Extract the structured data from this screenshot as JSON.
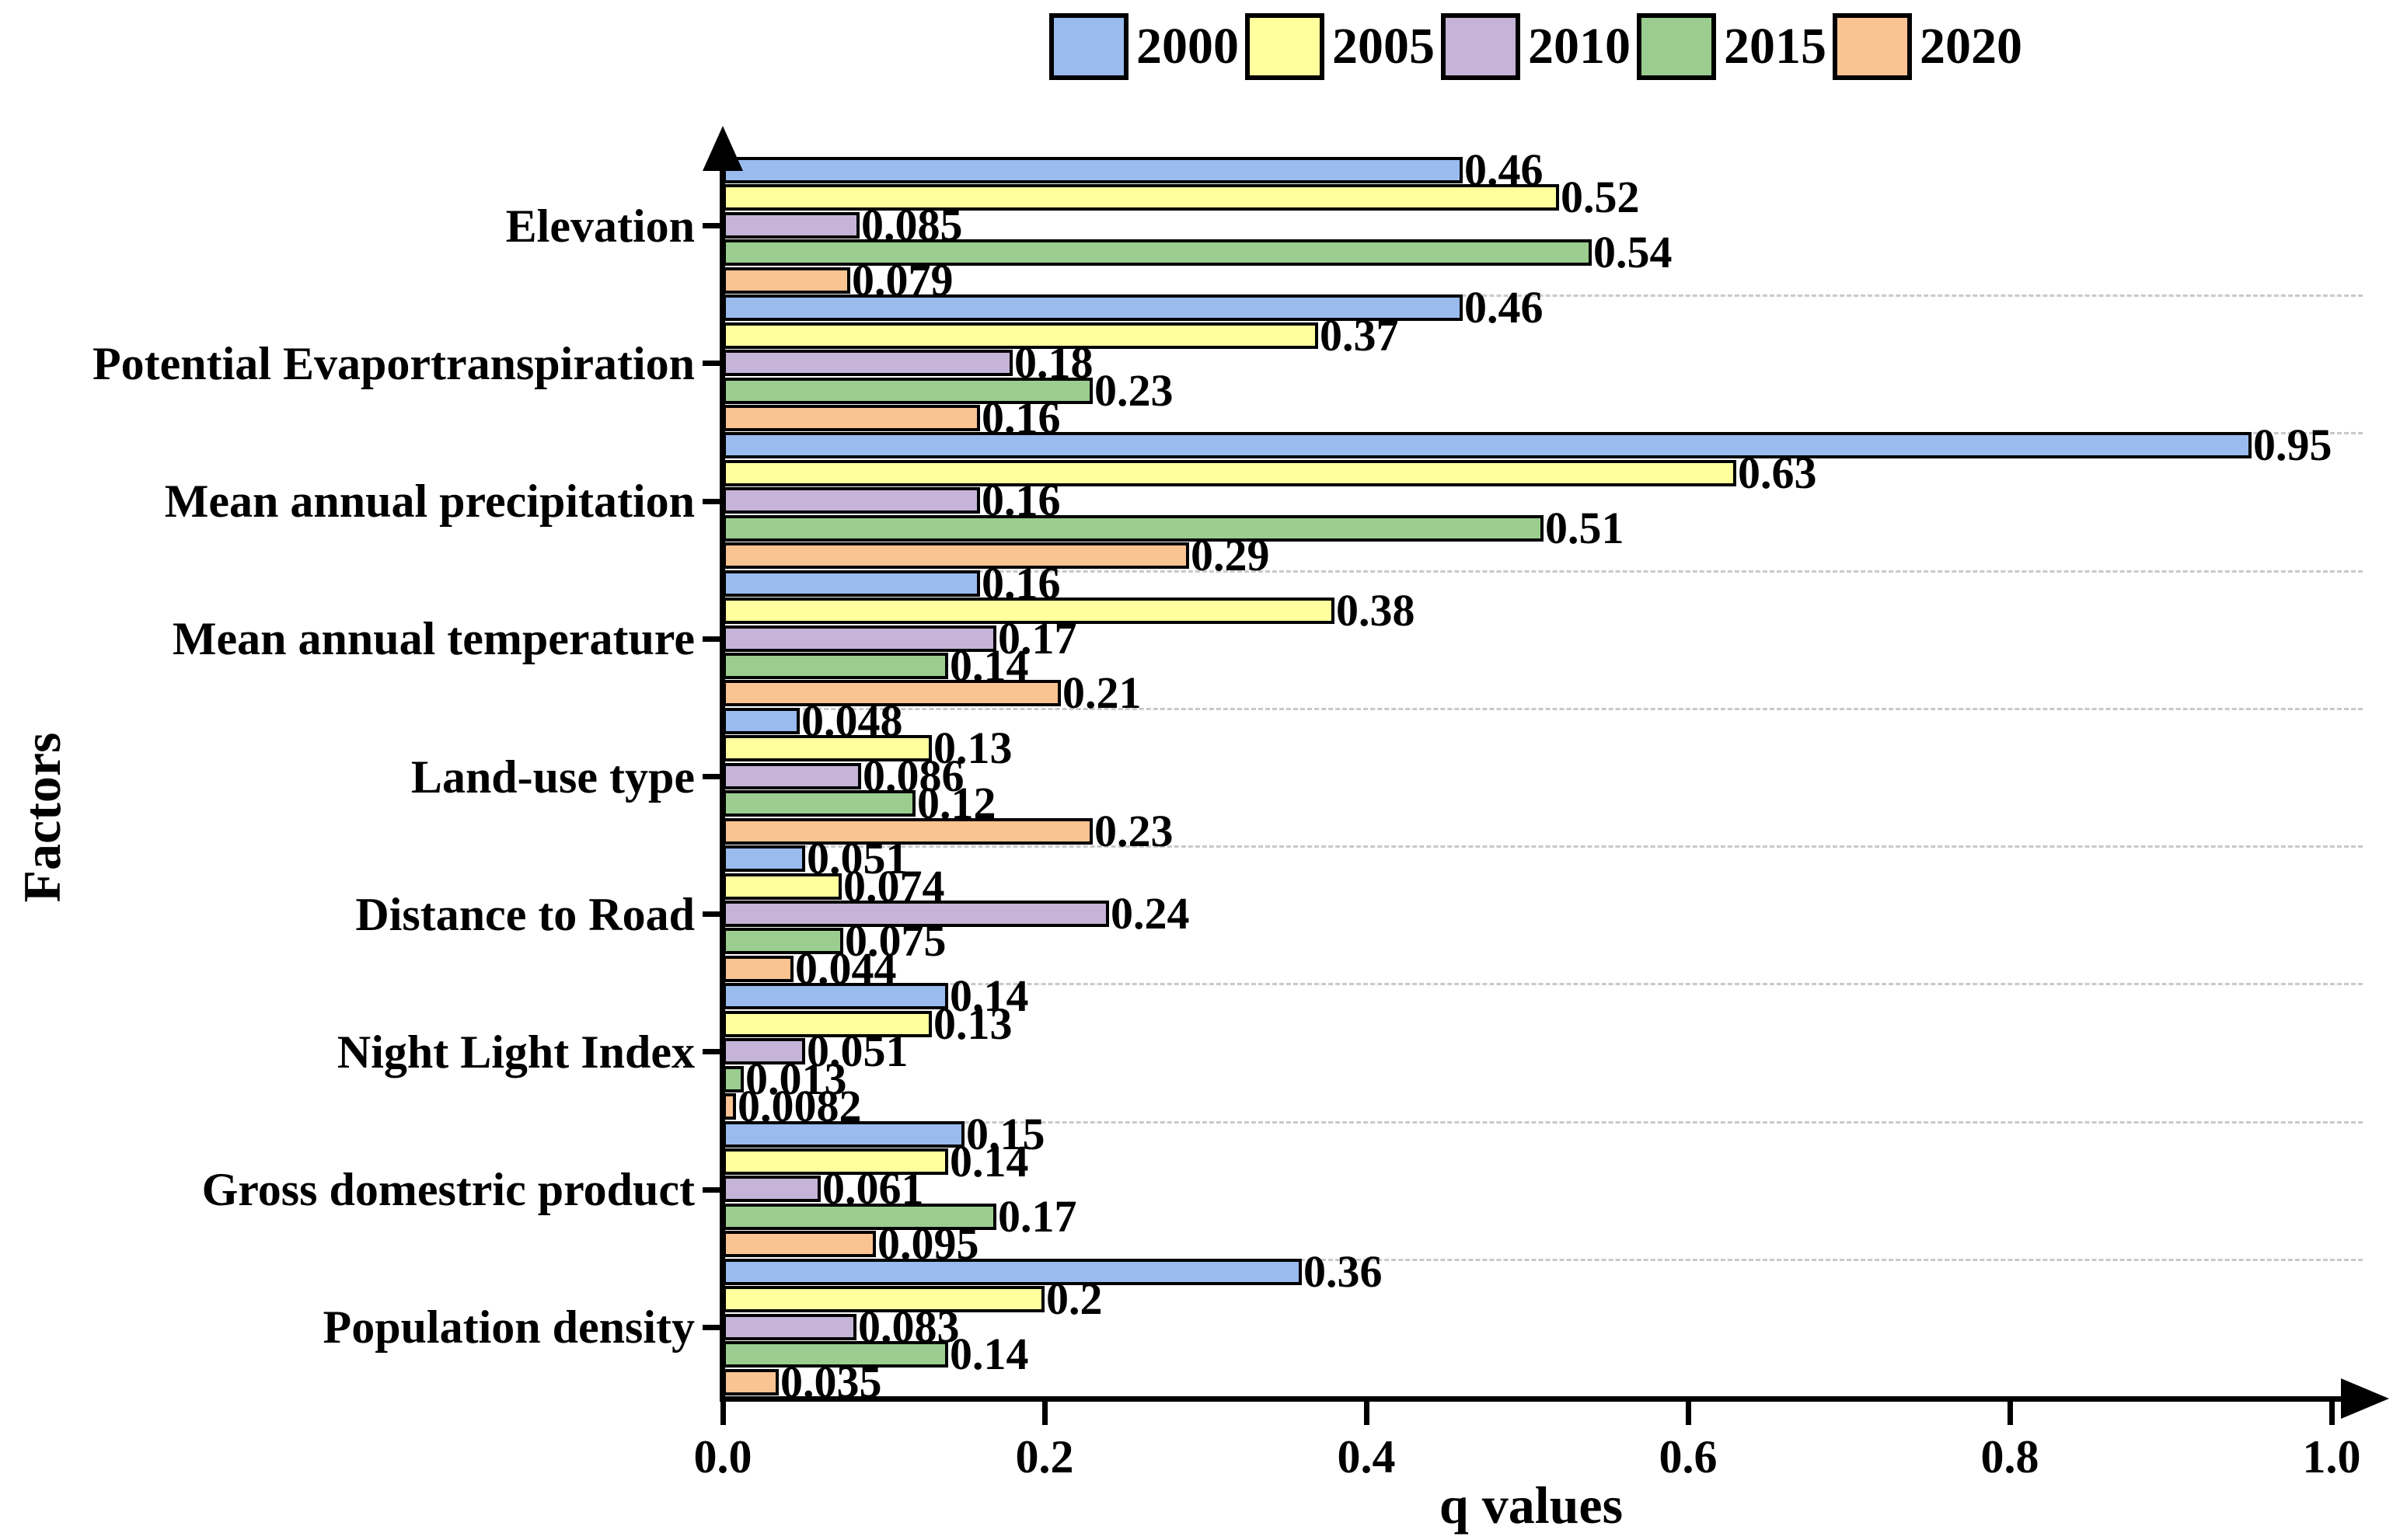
{
  "chart_data": {
    "type": "bar",
    "orientation": "horizontal",
    "title": "",
    "xlabel": "q values",
    "ylabel": "Factors",
    "xlim": [
      0.0,
      1.0
    ],
    "xtick_values": [
      0.0,
      0.2,
      0.4,
      0.6,
      0.8,
      1.0
    ],
    "xtick_labels": [
      "0.0",
      "0.2",
      "0.4",
      "0.6",
      "0.8",
      "1.0"
    ],
    "legend_position": "top",
    "grid": "dashed horizontal lines between category groups",
    "bar_outline_color": "#000000",
    "categories": [
      "Elevation",
      "Potential Evaportranspiration",
      "Mean annual precipitation",
      "Mean annual temperature",
      "Land-use type",
      "Distance to Road",
      "Night Light Index",
      "Gross domestric product",
      "Population density"
    ],
    "series": [
      {
        "name": "2000",
        "color": "#99BBEE",
        "values": [
          0.46,
          0.46,
          0.95,
          0.16,
          0.048,
          0.051,
          0.14,
          0.15,
          0.36
        ],
        "labels": [
          "0.46",
          "0.46",
          "0.95",
          "0.16",
          "0.048",
          "0.051",
          "0.14",
          "0.15",
          "0.36"
        ]
      },
      {
        "name": "2005",
        "color": "#FFFF9E",
        "values": [
          0.52,
          0.37,
          0.63,
          0.38,
          0.13,
          0.074,
          0.13,
          0.14,
          0.2
        ],
        "labels": [
          "0.52",
          "0.37",
          "0.63",
          "0.38",
          "0.13",
          "0.074",
          "0.13",
          "0.14",
          "0.2"
        ]
      },
      {
        "name": "2010",
        "color": "#C5B3D8",
        "values": [
          0.085,
          0.18,
          0.16,
          0.17,
          0.086,
          0.24,
          0.051,
          0.061,
          0.083
        ],
        "labels": [
          "0.085",
          "0.18",
          "0.16",
          "0.17",
          "0.086",
          "0.24",
          "0.051",
          "0.061",
          "0.083"
        ]
      },
      {
        "name": "2015",
        "color": "#9CCD90",
        "values": [
          0.54,
          0.23,
          0.51,
          0.14,
          0.12,
          0.075,
          0.013,
          0.17,
          0.14
        ],
        "labels": [
          "0.54",
          "0.23",
          "0.51",
          "0.14",
          "0.12",
          "0.075",
          "0.013",
          "0.17",
          "0.14"
        ]
      },
      {
        "name": "2020",
        "color": "#FAC392",
        "values": [
          0.079,
          0.16,
          0.29,
          0.21,
          0.23,
          0.044,
          0.0082,
          0.095,
          0.035
        ],
        "labels": [
          "0.079",
          "0.16",
          "0.29",
          "0.21",
          "0.23",
          "0.044",
          "0.0082",
          "0.095",
          "0.035"
        ]
      }
    ]
  }
}
